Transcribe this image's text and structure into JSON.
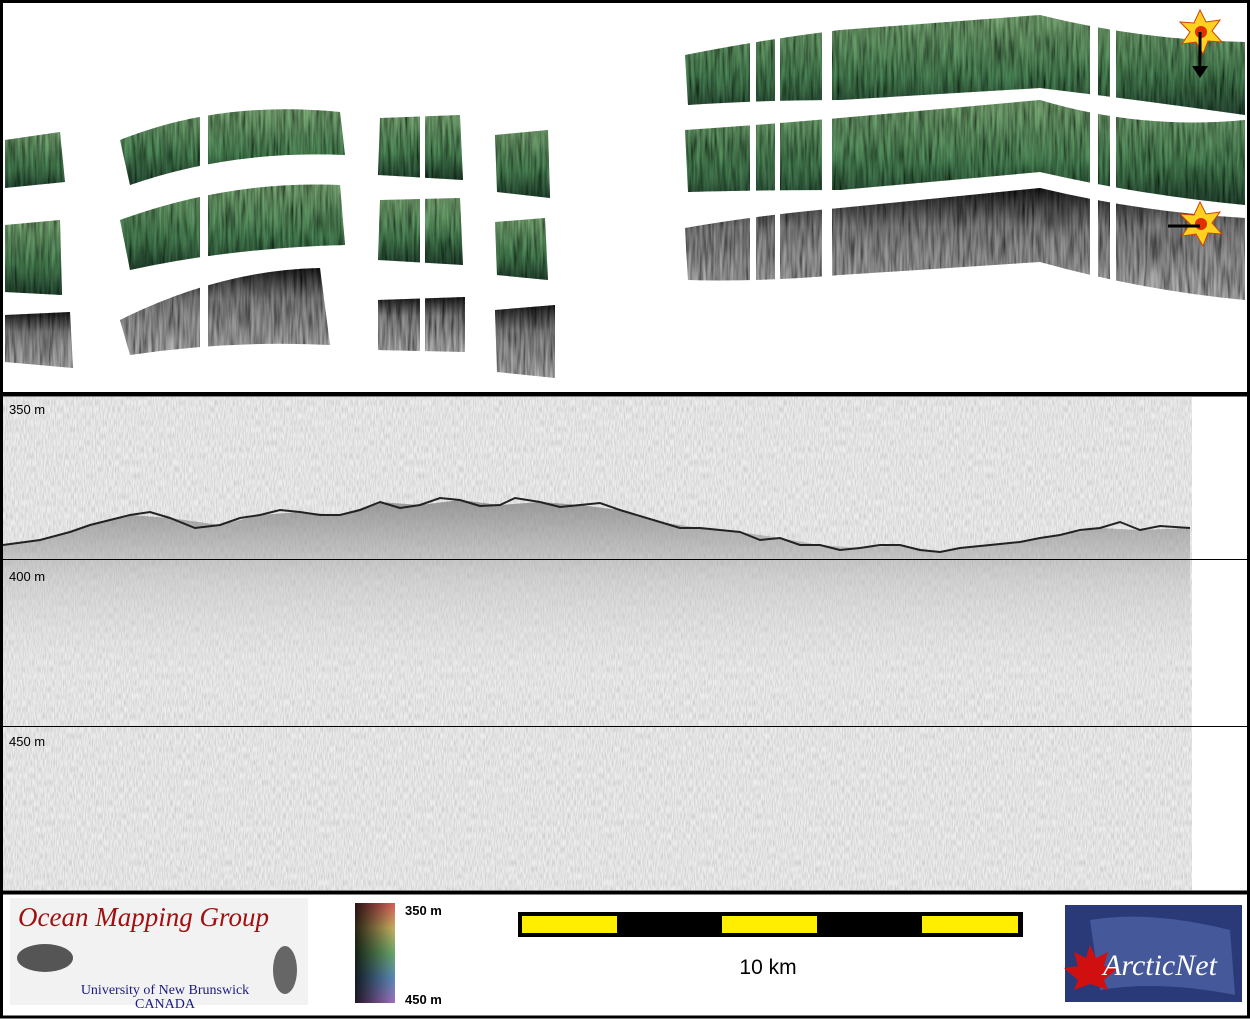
{
  "profile": {
    "depth_labels": [
      "350 m",
      "400 m",
      "450 m"
    ]
  },
  "logo": {
    "title": "Ocean Mapping Group",
    "university": "University of New Brunswick",
    "country": "CANADA"
  },
  "color_scale": {
    "top_label": "350 m",
    "bottom_label": "450 m"
  },
  "scale_bar": {
    "label": "10 km"
  },
  "partner_logo": {
    "name": "ArcticNet"
  }
}
